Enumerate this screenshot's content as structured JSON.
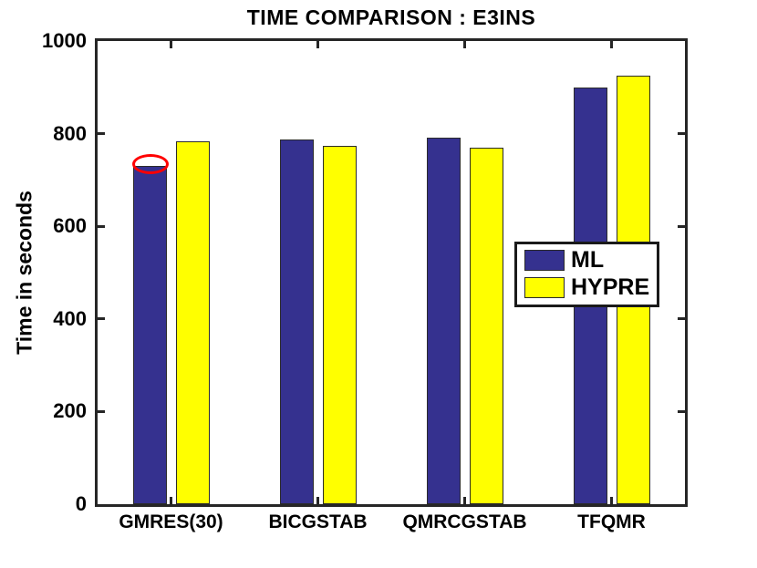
{
  "chart_data": {
    "type": "bar",
    "title": "TIME COMPARISON : E3INS",
    "ylabel": "Time in seconds",
    "xlabel": "",
    "categories": [
      "GMRES(30)",
      "BICGSTAB",
      "QMRCGSTAB",
      "TFQMR"
    ],
    "series": [
      {
        "name": "ML",
        "color": "#35318F",
        "values": [
          730,
          788,
          792,
          899
        ]
      },
      {
        "name": "HYPRE",
        "color": "#FFFF00",
        "values": [
          784,
          773,
          770,
          925
        ]
      }
    ],
    "ylim": [
      0,
      1000
    ],
    "yticks": [
      0,
      200,
      400,
      600,
      800,
      1000
    ],
    "grid": false,
    "legend_position": "middle-right",
    "legend_entries": [
      "ML",
      "HYPRE"
    ],
    "annotation": {
      "type": "ellipse",
      "target": "top of ML bar in GMRES(30) group",
      "color": "#FF0000"
    },
    "axis_color": "#262626",
    "background_color": "#FFFFFF"
  }
}
